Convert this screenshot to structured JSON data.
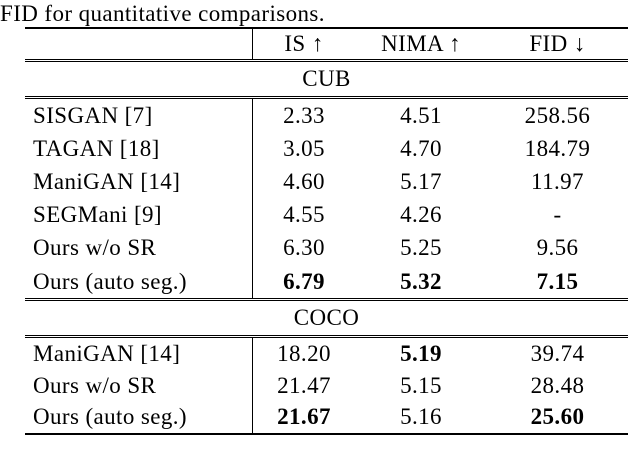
{
  "caption": "FID for quantitative comparisons.",
  "table": {
    "header": {
      "method": "",
      "columns": [
        "IS ↑",
        "NIMA ↑",
        "FID ↓"
      ]
    },
    "sections": [
      {
        "name": "CUB",
        "rows": [
          {
            "method": "SISGAN [7]",
            "values": [
              "2.33",
              "4.51",
              "258.56"
            ],
            "bold": [
              false,
              false,
              false
            ]
          },
          {
            "method": "TAGAN [18]",
            "values": [
              "3.05",
              "4.70",
              "184.79"
            ],
            "bold": [
              false,
              false,
              false
            ]
          },
          {
            "method": "ManiGAN [14]",
            "values": [
              "4.60",
              "5.17",
              "11.97"
            ],
            "bold": [
              false,
              false,
              false
            ]
          },
          {
            "method": "SEGMani [9]",
            "values": [
              "4.55",
              "4.26",
              "-"
            ],
            "bold": [
              false,
              false,
              false
            ]
          },
          {
            "method": "Ours w/o SR",
            "values": [
              "6.30",
              "5.25",
              "9.56"
            ],
            "bold": [
              false,
              false,
              false
            ]
          },
          {
            "method": "Ours (auto seg.)",
            "values": [
              "6.79",
              "5.32",
              "7.15"
            ],
            "bold": [
              true,
              true,
              true
            ]
          }
        ]
      },
      {
        "name": "COCO",
        "rows": [
          {
            "method": "ManiGAN [14]",
            "values": [
              "18.20",
              "5.19",
              "39.74"
            ],
            "bold": [
              false,
              true,
              false
            ]
          },
          {
            "method": "Ours w/o SR",
            "values": [
              "21.47",
              "5.15",
              "28.48"
            ],
            "bold": [
              false,
              false,
              false
            ]
          },
          {
            "method": "Ours (auto seg.)",
            "values": [
              "21.67",
              "5.16",
              "25.60"
            ],
            "bold": [
              true,
              false,
              true
            ]
          }
        ]
      }
    ]
  },
  "colors": {
    "text": "#000000",
    "background": "#ffffff",
    "rule": "#000000"
  }
}
